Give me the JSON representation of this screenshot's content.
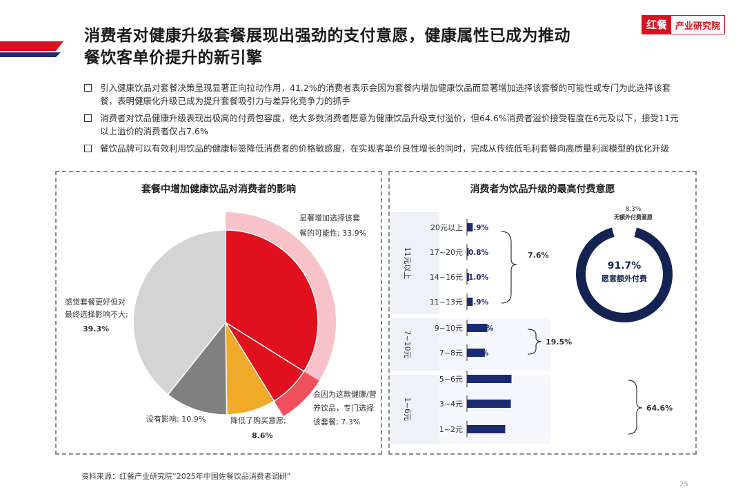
{
  "header": {
    "title_line1": "消费者对健康升级套餐展现出强劲的支付意愿，健康属性已成为推动",
    "title_line2": "餐饮客单价提升的新引擎",
    "logo_mark": "红餐",
    "logo_text": "产业研究院"
  },
  "bullets": [
    "引入健康饮品对套餐决策呈现显著正向拉动作用，41.2%的消费者表示会因为套餐内增加健康饮品而显著增加选择该套餐的可能性或专门为此选择该套餐，表明健康化升级已成为提升套餐吸引力与差异化竞争力的抓手",
    "消费者对饮品健康升级表现出极高的付费包容度，绝大多数消费者愿意为健康饮品升级支付溢价，但64.6%消费者溢价接受程度在6元及以下，接受11元以上溢价的消费者仅占7.6%",
    "餐饮品牌可以有效利用饮品的健康标签降低消费者的价格敏感度，在实现客单价良性增长的同时，完成从传统低毛利套餐向高质量利润模型的优化升级"
  ],
  "chart_data": [
    {
      "type": "pie",
      "title": "套餐中增加健康饮品对消费者的影响",
      "slices": [
        {
          "name": "显著增加选择该套餐的可能性",
          "value": 33.9,
          "label": "显著增加选择该套餐的可能性; 33.9%",
          "color": "#e0101e"
        },
        {
          "name": "会因为这款健康/营养饮品，专门选择该套餐",
          "value": 7.3,
          "label": "会因为这款健康/营养饮品，专门选择该套餐; 7.3%",
          "color": "#f0505c"
        },
        {
          "name": "降低了购买意愿",
          "value": 8.6,
          "label": "降低了购买意愿; 8.6%",
          "color": "#f0a928"
        },
        {
          "name": "没有影响",
          "value": 10.9,
          "label": "没有影响; 10.9%",
          "color": "#808080"
        },
        {
          "name": "感觉套餐更好但对最终选择影响不大",
          "value": 39.3,
          "label": "感觉套餐更好但对最终选择影响不大; 39.3%",
          "color": "#d4d4d4"
        }
      ]
    },
    {
      "type": "bar",
      "title": "消费者为饮品升级的最高付费意愿",
      "categories": [
        "20元以上",
        "17~20元",
        "14~16元",
        "11~13元",
        "9~10元",
        "7~8元",
        "5~6元",
        "3~4元",
        "1~2元"
      ],
      "values": [
        2.9,
        0.8,
        1.0,
        2.9,
        10.4,
        9.1,
        22.7,
        22.4,
        19.5
      ],
      "groups": [
        {
          "name": "11元以上",
          "total": "7.6%"
        },
        {
          "name": "7~10元",
          "total": "19.5%"
        },
        {
          "name": "1~6元",
          "total": "64.6%"
        }
      ],
      "bar_color": "#1b2b72"
    },
    {
      "type": "pie",
      "subtype": "donut",
      "center_value": "91.7%",
      "center_label": "愿意额外付费",
      "outside_value": "8.3%",
      "outside_label": "无额外付费意愿",
      "values": [
        91.7,
        8.3
      ],
      "colors": [
        "#142452",
        "#ffffff"
      ]
    }
  ],
  "footer": {
    "source": "资料来源：红餐产业研究院“2025年中国佐餐饮品消费者调研”",
    "page": "25"
  }
}
